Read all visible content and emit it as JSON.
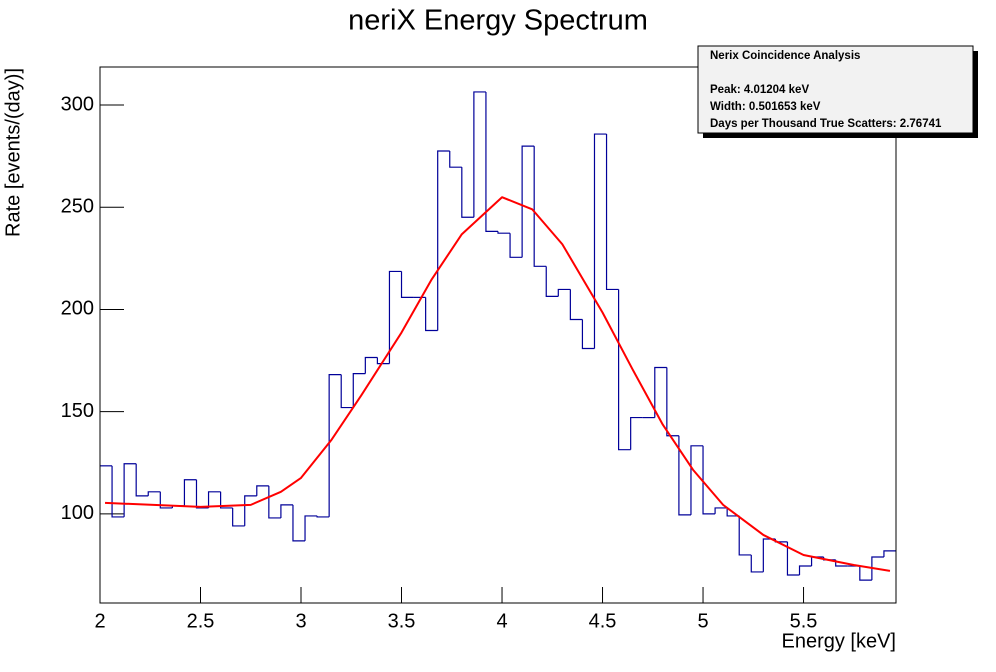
{
  "chart_data": {
    "type": "histogram",
    "title": "neriX Energy Spectrum",
    "x_label": "Energy [keV]",
    "y_label": "Rate [events/(day)]",
    "bins": [
      2,
      2.06,
      2.12,
      2.18,
      2.24,
      2.3,
      2.36,
      2.42,
      2.48,
      2.54,
      2.6,
      2.66,
      2.72,
      2.78,
      2.84,
      2.9,
      2.96,
      3.02,
      3.08,
      3.14,
      3.2,
      3.26,
      3.32,
      3.38,
      3.44,
      3.5,
      3.56,
      3.62,
      3.68,
      3.74,
      3.8,
      3.86,
      3.92,
      3.98,
      4.04,
      4.1,
      4.16,
      4.22,
      4.28,
      4.34,
      4.4,
      4.46,
      4.52,
      4.58,
      4.64,
      4.7,
      4.76,
      4.82,
      4.88,
      4.94,
      5,
      5.06,
      5.12,
      5.18,
      5.24,
      5.3,
      5.36,
      5.42,
      5.48,
      5.54,
      5.6,
      5.66,
      5.72,
      5.78,
      5.84,
      5.9,
      5.96
    ],
    "values": [
      123.5,
      98.5,
      124.5,
      108.8,
      110.8,
      102.9,
      103.9,
      116.7,
      102.9,
      110.8,
      102.9,
      94.1,
      108.8,
      113.7,
      98,
      104.4,
      86.8,
      99,
      98.5,
      168.1,
      152,
      168.6,
      176.5,
      173.5,
      218.6,
      205.9,
      205.9,
      189.7,
      277.5,
      269.6,
      245.1,
      306.4,
      238.2,
      237.3,
      225.5,
      279.9,
      221.1,
      206.4,
      209.8,
      195.1,
      180.9,
      285.8,
      209.8,
      131.4,
      147.1,
      147.1,
      171.6,
      138.2,
      99.5,
      133.3,
      100,
      102.9,
      99,
      79.9,
      71.6,
      87.7,
      86.3,
      70.1,
      74.5,
      78.9,
      77.5,
      74.5,
      74.5,
      67.6,
      78.9,
      81.9
    ],
    "color": "#000099",
    "fit": {
      "color": "#ff0000",
      "x": [
        2.025,
        2.5,
        2.75,
        2.9,
        3.0,
        3.15,
        3.3,
        3.5,
        3.65,
        3.8,
        4.0,
        4.15,
        4.3,
        4.5,
        4.65,
        4.8,
        4.95,
        5.1,
        5.3,
        5.5,
        5.75,
        5.93
      ],
      "y": [
        105.4,
        103.4,
        104.4,
        110.8,
        117.6,
        136,
        158,
        188.7,
        214.7,
        236.8,
        254.9,
        249,
        231.9,
        198.5,
        170.6,
        143.6,
        121.6,
        104.4,
        89.7,
        79.9,
        75,
        72.1
      ]
    },
    "xlim": [
      2,
      5.96
    ],
    "ylim": [
      56.4,
      318.6
    ],
    "xticks": [
      2,
      2.5,
      3,
      3.5,
      4,
      4.5,
      5,
      5.5
    ],
    "yticks": [
      100,
      150,
      200,
      250,
      300
    ],
    "grid": false,
    "stats_box": {
      "title": "Nerix Coincidence Analysis",
      "lines": [
        "Peak: 4.01204 keV",
        "Width: 0.501653 keV",
        "Days per Thousand True Scatters: 2.76741"
      ]
    }
  }
}
